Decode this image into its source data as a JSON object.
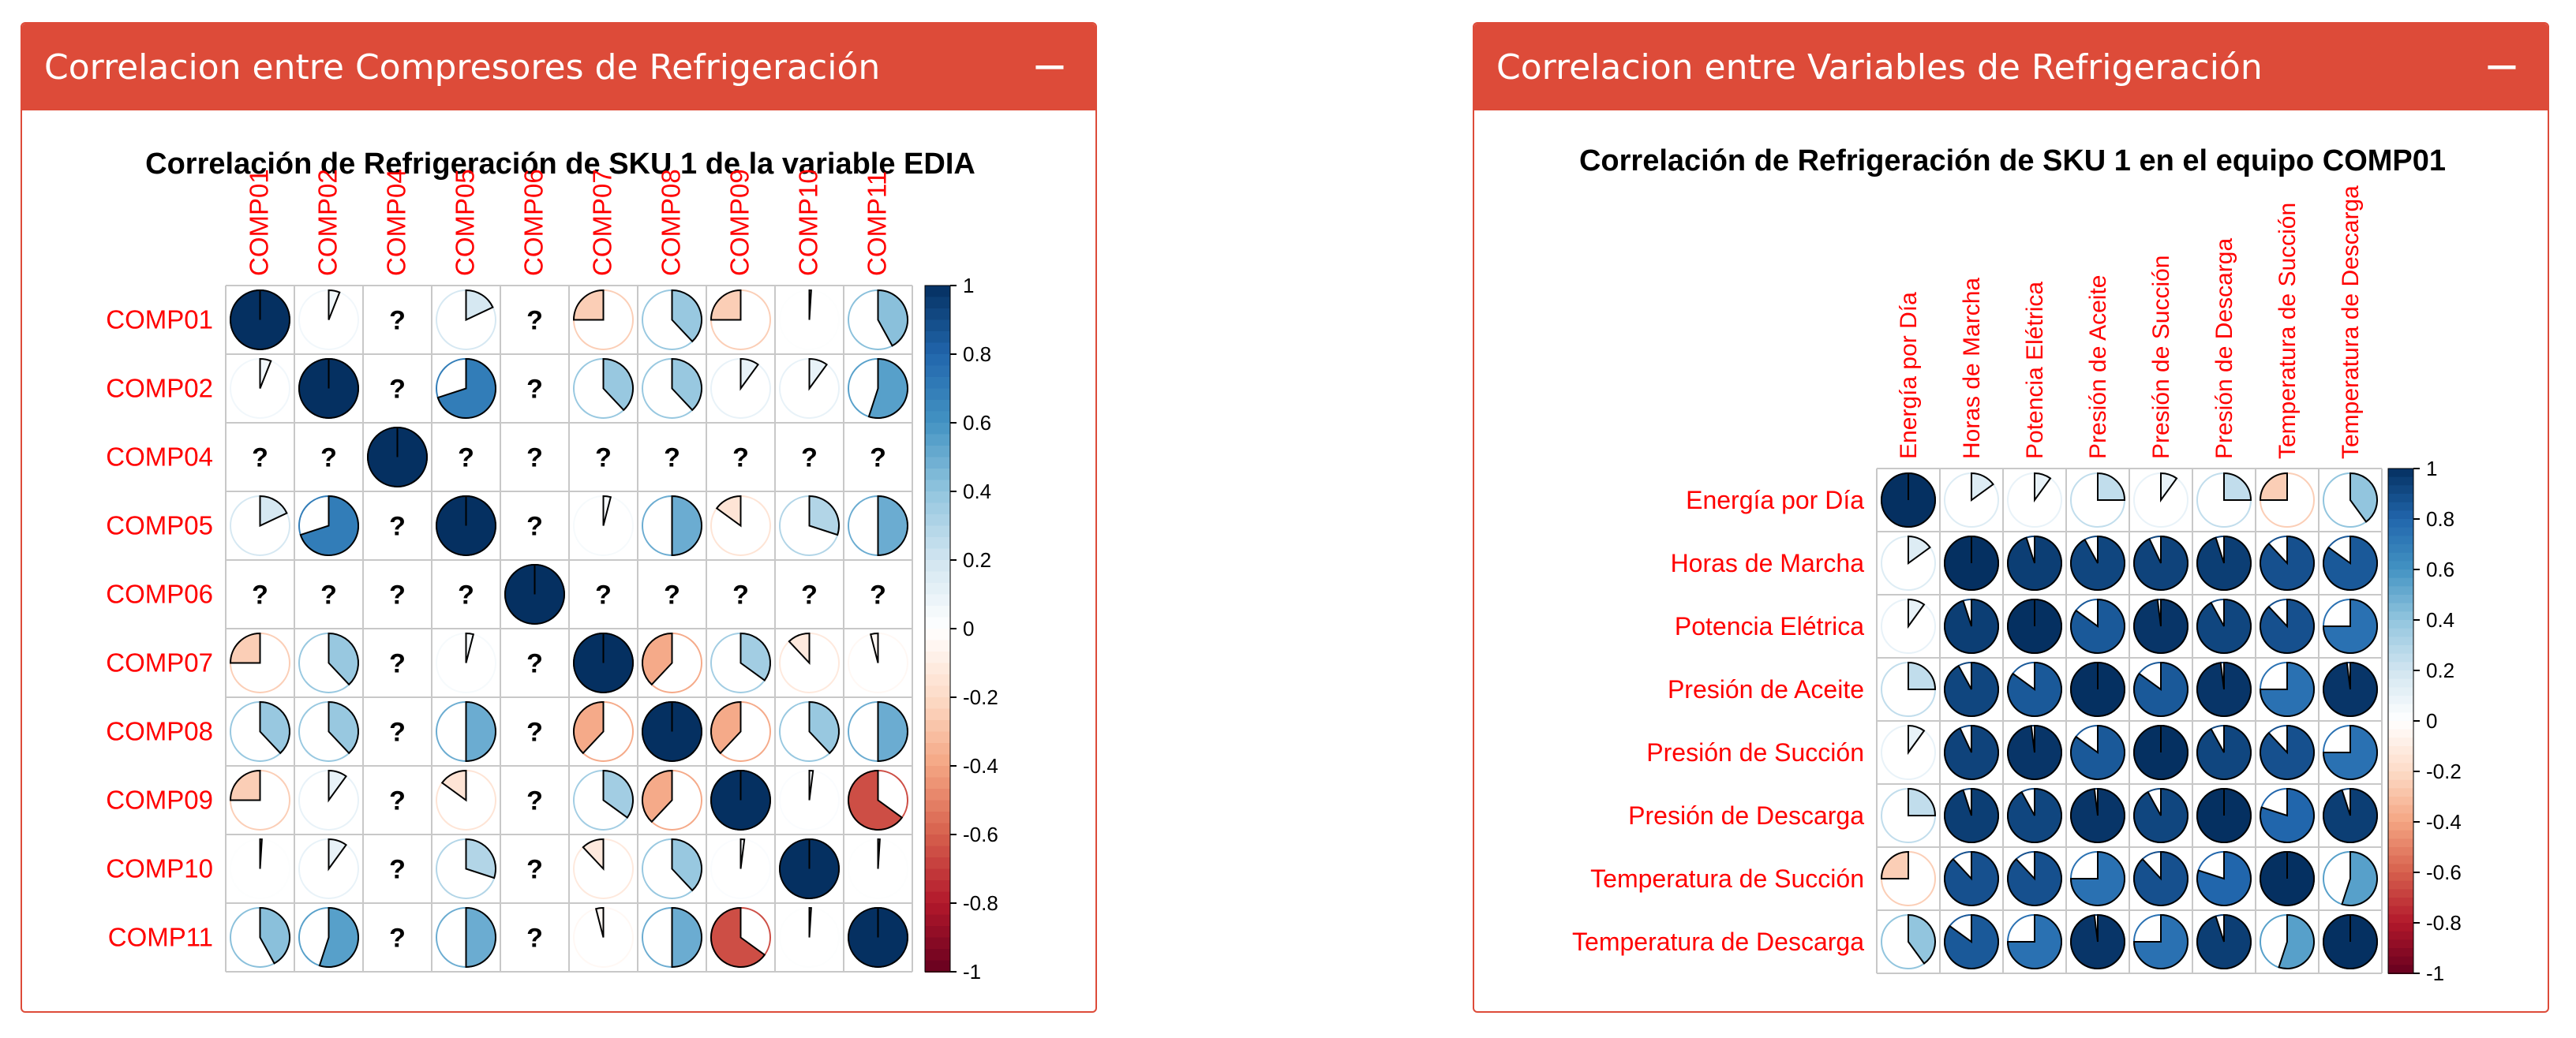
{
  "panels": [
    {
      "header_title": "Correlacion entre Compresores de Refrigeración",
      "collapse_label": "−",
      "chart_title": "Correlación de Refrigeración de SKU 1 de la variable EDIA"
    },
    {
      "header_title": "Correlacion entre Variables de Refrigeración",
      "collapse_label": "−",
      "chart_title": "Correlación de Refrigeración de SKU 1 en el equipo COMP01"
    }
  ],
  "colors": {
    "header": "#dd4b39",
    "label": "#ff0000",
    "grid": "#c8c8c8",
    "missing_mark": "#000000"
  },
  "chart_data": [
    {
      "type": "heatmap",
      "style": "corrplot-pie",
      "title": "Correlación de Refrigeración de SKU 1 de la variable EDIA",
      "columns": [
        "COMP01",
        "COMP02",
        "COMP04",
        "COMP05",
        "COMP06",
        "COMP07",
        "COMP08",
        "COMP09",
        "COMP10",
        "COMP11"
      ],
      "rows": [
        "COMP01",
        "COMP02",
        "COMP04",
        "COMP05",
        "COMP06",
        "COMP07",
        "COMP08",
        "COMP09",
        "COMP10",
        "COMP11"
      ],
      "missing_label": "?",
      "values": [
        [
          1.0,
          0.06,
          null,
          0.18,
          null,
          -0.25,
          0.38,
          -0.25,
          0.01,
          0.42
        ],
        [
          0.06,
          1.0,
          null,
          0.7,
          null,
          0.38,
          0.38,
          0.1,
          0.1,
          0.55
        ],
        [
          null,
          null,
          1.0,
          null,
          null,
          null,
          null,
          null,
          null,
          null
        ],
        [
          0.18,
          0.7,
          null,
          1.0,
          null,
          0.04,
          0.5,
          -0.15,
          0.3,
          0.5
        ],
        [
          null,
          null,
          null,
          null,
          1.0,
          null,
          null,
          null,
          null,
          null
        ],
        [
          -0.25,
          0.38,
          null,
          0.04,
          null,
          1.0,
          -0.38,
          0.35,
          -0.12,
          -0.04
        ],
        [
          0.38,
          0.38,
          null,
          0.5,
          null,
          -0.38,
          1.0,
          -0.38,
          0.38,
          0.5
        ],
        [
          -0.25,
          0.1,
          null,
          -0.15,
          null,
          0.35,
          -0.38,
          1.0,
          0.02,
          -0.65
        ],
        [
          0.01,
          0.1,
          null,
          0.3,
          null,
          -0.12,
          0.38,
          0.02,
          1.0,
          0.01
        ],
        [
          0.42,
          0.55,
          null,
          0.5,
          null,
          -0.04,
          0.5,
          -0.65,
          0.01,
          1.0
        ]
      ],
      "legend_ticks": [
        "1",
        "0.8",
        "0.6",
        "0.4",
        "0.2",
        "0",
        "-0.2",
        "-0.4",
        "-0.6",
        "-0.8",
        "-1"
      ],
      "legend_range": [
        -1,
        1
      ]
    },
    {
      "type": "heatmap",
      "style": "corrplot-pie",
      "title": "Correlación de Refrigeración de SKU 1 en el equipo COMP01",
      "columns": [
        "Energía por Día",
        "Horas de Marcha",
        "Potencia Elétrica",
        "Presión de Aceite",
        "Presión de Succión",
        "Presión de Descarga",
        "Temperatura de Succión",
        "Temperatura de Descarga"
      ],
      "rows": [
        "Energía por Día",
        "Horas de Marcha",
        "Potencia Elétrica",
        "Presión de Aceite",
        "Presión de Succión",
        "Presión de Descarga",
        "Temperatura de Succión",
        "Temperatura de Descarga"
      ],
      "values": [
        [
          1.0,
          0.15,
          0.1,
          0.25,
          0.1,
          0.25,
          -0.25,
          0.4
        ],
        [
          0.15,
          1.0,
          0.95,
          0.92,
          0.93,
          0.95,
          0.88,
          0.85
        ],
        [
          0.1,
          0.95,
          1.0,
          0.85,
          0.98,
          0.92,
          0.88,
          0.75
        ],
        [
          0.25,
          0.92,
          0.85,
          1.0,
          0.85,
          0.98,
          0.75,
          0.98
        ],
        [
          0.1,
          0.93,
          0.98,
          0.85,
          1.0,
          0.92,
          0.88,
          0.75
        ],
        [
          0.25,
          0.95,
          0.92,
          0.98,
          0.92,
          1.0,
          0.8,
          0.95
        ],
        [
          -0.25,
          0.88,
          0.88,
          0.75,
          0.88,
          0.8,
          1.0,
          0.55
        ],
        [
          0.4,
          0.85,
          0.75,
          0.98,
          0.75,
          0.95,
          0.55,
          1.0
        ]
      ],
      "legend_ticks": [
        "1",
        "0.8",
        "0.6",
        "0.4",
        "0.2",
        "0",
        "-0.2",
        "-0.4",
        "-0.6",
        "-0.8",
        "-1"
      ],
      "legend_range": [
        -1,
        1
      ]
    }
  ]
}
